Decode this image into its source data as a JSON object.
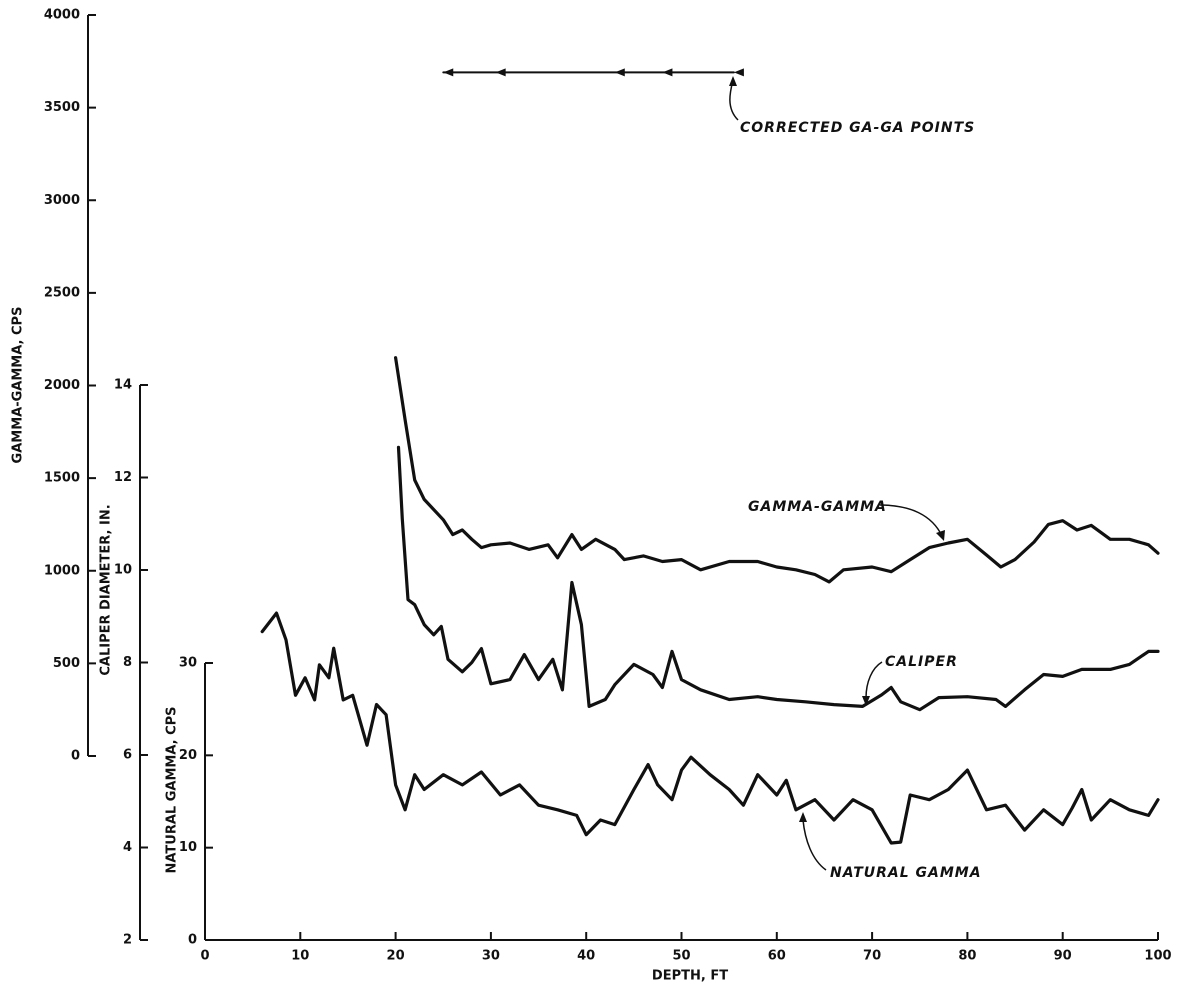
{
  "chart_data": {
    "type": "line",
    "xlabel": "DEPTH, FT",
    "xlim": [
      0,
      100
    ],
    "xticks": [
      0,
      10,
      20,
      30,
      40,
      50,
      60,
      70,
      80,
      90,
      100
    ],
    "ylabel": "GAMMA-GAMMA, CPS",
    "ylim": [
      0,
      4000
    ],
    "yticks": [
      0,
      500,
      1000,
      1500,
      2000,
      2500,
      3000,
      3500,
      4000
    ],
    "y2label": "CALIPER DIAMETER, IN.",
    "y2lim": [
      2,
      14
    ],
    "y2ticks": [
      2,
      4,
      6,
      8,
      10,
      12,
      14
    ],
    "y3label": "NATURAL GAMMA, CPS",
    "y3lim": [
      0,
      30
    ],
    "y3ticks": [
      0,
      10,
      20,
      30
    ],
    "series": [
      {
        "name": "GAMMA-GAMMA",
        "color": "#111111",
        "axis": "y",
        "x": [
          20,
          21,
          22,
          23,
          25,
          26,
          27,
          28,
          29,
          30,
          32,
          34,
          36,
          37,
          38.5,
          39.5,
          41,
          43,
          44,
          46,
          48,
          50,
          52,
          55,
          58,
          60,
          62,
          64,
          65.5,
          67,
          70,
          72,
          74,
          76,
          78,
          80,
          82,
          83.5,
          85,
          87,
          88.5,
          90,
          91.5,
          93,
          95,
          97,
          99,
          100
        ],
        "values": [
          2150,
          1815,
          1490,
          1385,
          1275,
          1195,
          1220,
          1170,
          1125,
          1140,
          1150,
          1115,
          1140,
          1070,
          1195,
          1115,
          1170,
          1115,
          1060,
          1080,
          1050,
          1060,
          1005,
          1050,
          1050,
          1020,
          1005,
          980,
          940,
          1005,
          1020,
          995,
          1060,
          1125,
          1150,
          1170,
          1085,
          1020,
          1060,
          1155,
          1250,
          1270,
          1220,
          1245,
          1170,
          1170,
          1140,
          1095
        ]
      },
      {
        "name": "CALIPER",
        "color": "#111111",
        "axis": "y2",
        "x": [
          20.3,
          20.7,
          21.3,
          22,
          23,
          24,
          24.8,
          25.5,
          27,
          28,
          29,
          30,
          32,
          33.5,
          35,
          36.5,
          37.5,
          38.5,
          39.5,
          40.3,
          42,
          43,
          45,
          47,
          48,
          49,
          50,
          52,
          55,
          58,
          60,
          63,
          66,
          69,
          71,
          72,
          73,
          75,
          77,
          80,
          83,
          84,
          86,
          88,
          90,
          92,
          95,
          97,
          99,
          100
        ],
        "values": [
          12.65,
          11.1,
          9.36,
          9.25,
          8.82,
          8.6,
          8.78,
          8.07,
          7.8,
          8.0,
          8.3,
          7.54,
          7.63,
          8.17,
          7.63,
          8.07,
          7.41,
          9.73,
          8.82,
          7.05,
          7.2,
          7.52,
          7.96,
          7.74,
          7.46,
          8.24,
          7.63,
          7.41,
          7.2,
          7.26,
          7.2,
          7.15,
          7.09,
          7.05,
          7.3,
          7.46,
          7.15,
          6.98,
          7.24,
          7.26,
          7.2,
          7.05,
          7.41,
          7.74,
          7.7,
          7.85,
          7.85,
          7.96,
          8.24,
          8.24
        ]
      },
      {
        "name": "NATURAL GAMMA",
        "color": "#111111",
        "axis": "y3",
        "x": [
          6,
          7.5,
          8.5,
          9.5,
          10.5,
          11.5,
          12,
          13,
          13.5,
          14.5,
          15.5,
          17,
          18,
          19,
          20,
          21,
          22,
          23,
          25,
          27,
          29,
          31,
          33,
          35,
          37,
          39,
          40,
          41.5,
          43,
          45,
          46.5,
          47.5,
          49,
          50,
          51,
          53,
          55,
          56.5,
          58,
          60,
          61,
          62,
          64,
          66,
          68,
          70,
          72,
          73,
          74,
          76,
          78,
          80,
          82,
          84,
          86,
          88,
          90,
          91,
          92,
          93,
          95,
          97,
          99,
          100
        ],
        "values": [
          33.4,
          35.4,
          32.5,
          26.5,
          28.4,
          26,
          29.8,
          28.4,
          31.6,
          26,
          26.5,
          21.1,
          25.5,
          24.4,
          16.8,
          14.1,
          17.9,
          16.3,
          17.9,
          16.8,
          18.2,
          15.7,
          16.8,
          14.6,
          14.1,
          13.5,
          11.4,
          13,
          12.5,
          16.3,
          19,
          16.8,
          15.2,
          18.4,
          19.8,
          17.9,
          16.3,
          14.6,
          17.9,
          15.7,
          17.3,
          14.1,
          15.2,
          13,
          15.2,
          14.1,
          10.5,
          10.6,
          15.7,
          15.2,
          16.3,
          18.4,
          14.1,
          14.6,
          11.9,
          14.1,
          12.5,
          14.3,
          16.3,
          13,
          15.2,
          14.1,
          13.5,
          15.2
        ]
      },
      {
        "name": "CORRECTED GA-GA POINTS",
        "color": "#111111",
        "axis": "y",
        "markers": true,
        "x": [
          25,
          30.5,
          43,
          48,
          55.5
        ],
        "values": [
          3690,
          3690,
          3690,
          3690,
          3690
        ]
      }
    ]
  }
}
